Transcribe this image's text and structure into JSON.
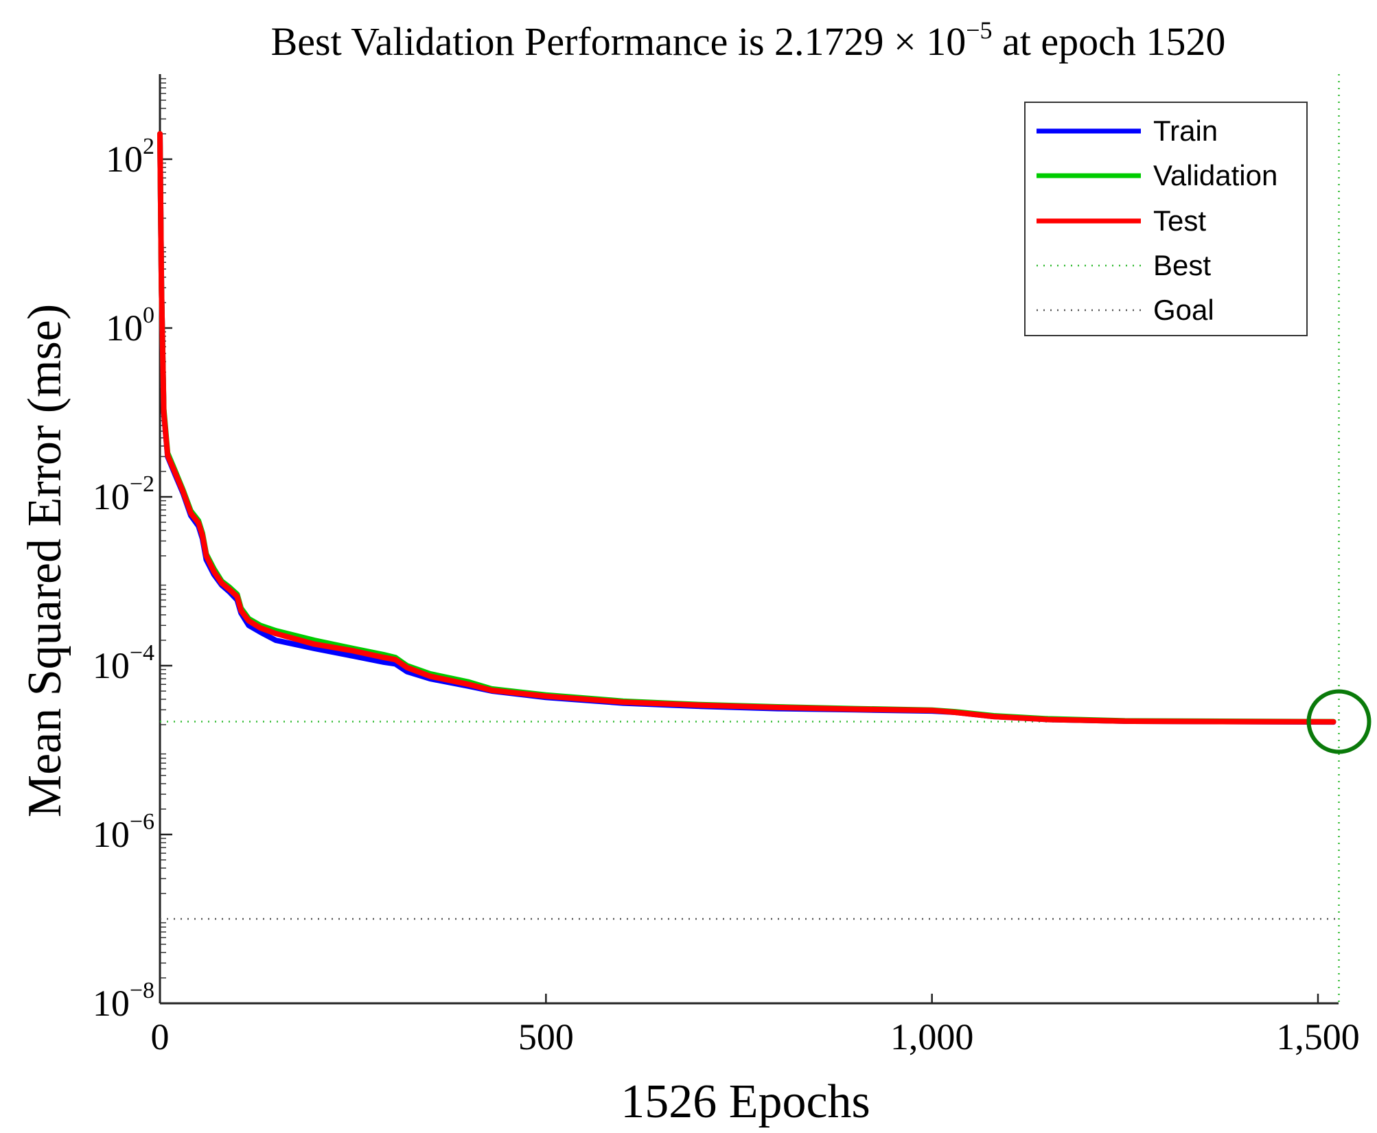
{
  "chart_data": {
    "type": "line",
    "title": {
      "prefix": "Best Validation Performance is 2.1729 × 10",
      "exponent": "−5",
      "suffix": " at epoch 1520"
    },
    "xlabel": "1526 Epochs",
    "ylabel": "Mean Squared Error (mse)",
    "xscale": "linear",
    "yscale": "log",
    "xlim": [
      0,
      1526
    ],
    "ylim_exponents": [
      -8,
      3
    ],
    "x_ticks": [
      {
        "value": 0,
        "label": "0"
      },
      {
        "value": 500,
        "label": "500"
      },
      {
        "value": 1000,
        "label": "1,000"
      },
      {
        "value": 1500,
        "label": "1,500"
      }
    ],
    "y_ticks": [
      {
        "exponent": 2,
        "base": "10",
        "sup": "2"
      },
      {
        "exponent": 0,
        "base": "10",
        "sup": "0"
      },
      {
        "exponent": -2,
        "base": "10",
        "sup": "−2"
      },
      {
        "exponent": -4,
        "base": "10",
        "sup": "−4"
      },
      {
        "exponent": -6,
        "base": "10",
        "sup": "−6"
      },
      {
        "exponent": -8,
        "base": "10",
        "sup": "−8"
      }
    ],
    "series": [
      {
        "name": "Train",
        "color": "#0000ff",
        "style": "solid",
        "points": [
          [
            0,
            200
          ],
          [
            2,
            3
          ],
          [
            5,
            0.1
          ],
          [
            10,
            0.03
          ],
          [
            20,
            0.018
          ],
          [
            30,
            0.011
          ],
          [
            40,
            0.006
          ],
          [
            50,
            0.0045
          ],
          [
            55,
            0.0032
          ],
          [
            60,
            0.0018
          ],
          [
            70,
            0.0012
          ],
          [
            80,
            0.0009
          ],
          [
            90,
            0.00075
          ],
          [
            100,
            0.0006
          ],
          [
            105,
            0.00042
          ],
          [
            115,
            0.0003
          ],
          [
            130,
            0.00025
          ],
          [
            150,
            0.0002
          ],
          [
            200,
            0.00016
          ],
          [
            250,
            0.00013
          ],
          [
            290,
            0.00011
          ],
          [
            305,
            0.000105
          ],
          [
            320,
            8.5e-05
          ],
          [
            350,
            7e-05
          ],
          [
            400,
            5.7e-05
          ],
          [
            430,
            5e-05
          ],
          [
            500,
            4.2e-05
          ],
          [
            600,
            3.6e-05
          ],
          [
            700,
            3.3e-05
          ],
          [
            800,
            3.1e-05
          ],
          [
            900,
            3e-05
          ],
          [
            1000,
            2.9e-05
          ],
          [
            1030,
            2.8e-05
          ],
          [
            1080,
            2.5e-05
          ],
          [
            1150,
            2.3e-05
          ],
          [
            1250,
            2.2e-05
          ],
          [
            1350,
            2.18e-05
          ],
          [
            1520,
            2.15e-05
          ]
        ]
      },
      {
        "name": "Validation",
        "color": "#00cc00",
        "style": "solid",
        "points": [
          [
            0,
            200
          ],
          [
            2,
            3
          ],
          [
            5,
            0.11
          ],
          [
            10,
            0.033
          ],
          [
            20,
            0.02
          ],
          [
            30,
            0.012
          ],
          [
            40,
            0.0068
          ],
          [
            50,
            0.0052
          ],
          [
            55,
            0.0037
          ],
          [
            60,
            0.0021
          ],
          [
            70,
            0.0014
          ],
          [
            80,
            0.001
          ],
          [
            90,
            0.00085
          ],
          [
            100,
            0.0007
          ],
          [
            105,
            0.00048
          ],
          [
            115,
            0.00036
          ],
          [
            130,
            0.0003
          ],
          [
            150,
            0.00026
          ],
          [
            200,
            0.0002
          ],
          [
            250,
            0.00016
          ],
          [
            290,
            0.000135
          ],
          [
            305,
            0.000125
          ],
          [
            320,
            0.0001
          ],
          [
            350,
            8e-05
          ],
          [
            400,
            6.4e-05
          ],
          [
            430,
            5.3e-05
          ],
          [
            500,
            4.5e-05
          ],
          [
            600,
            3.8e-05
          ],
          [
            700,
            3.45e-05
          ],
          [
            800,
            3.25e-05
          ],
          [
            900,
            3.1e-05
          ],
          [
            1000,
            2.98e-05
          ],
          [
            1030,
            2.85e-05
          ],
          [
            1080,
            2.55e-05
          ],
          [
            1150,
            2.35e-05
          ],
          [
            1250,
            2.22e-05
          ],
          [
            1350,
            2.2e-05
          ],
          [
            1520,
            2.17e-05
          ]
        ]
      },
      {
        "name": "Test",
        "color": "#ff0000",
        "style": "solid",
        "points": [
          [
            0,
            200
          ],
          [
            2,
            3
          ],
          [
            5,
            0.1
          ],
          [
            10,
            0.031
          ],
          [
            20,
            0.019
          ],
          [
            30,
            0.0115
          ],
          [
            40,
            0.0064
          ],
          [
            50,
            0.0049
          ],
          [
            55,
            0.0035
          ],
          [
            60,
            0.002
          ],
          [
            70,
            0.0013
          ],
          [
            80,
            0.00095
          ],
          [
            90,
            0.0008
          ],
          [
            100,
            0.00066
          ],
          [
            105,
            0.00045
          ],
          [
            115,
            0.00034
          ],
          [
            130,
            0.00028
          ],
          [
            150,
            0.00024
          ],
          [
            200,
            0.00018
          ],
          [
            250,
            0.00015
          ],
          [
            290,
            0.000125
          ],
          [
            305,
            0.000118
          ],
          [
            320,
            9.5e-05
          ],
          [
            350,
            7.5e-05
          ],
          [
            400,
            6e-05
          ],
          [
            430,
            5.1e-05
          ],
          [
            500,
            4.35e-05
          ],
          [
            600,
            3.7e-05
          ],
          [
            700,
            3.4e-05
          ],
          [
            800,
            3.2e-05
          ],
          [
            900,
            3.05e-05
          ],
          [
            1000,
            2.95e-05
          ],
          [
            1030,
            2.8e-05
          ],
          [
            1080,
            2.5e-05
          ],
          [
            1150,
            2.3e-05
          ],
          [
            1250,
            2.2e-05
          ],
          [
            1350,
            2.18e-05
          ],
          [
            1520,
            2.16e-05
          ]
        ]
      },
      {
        "name": "Best",
        "color": "#33bb33",
        "style": "dotted",
        "y": 2.1729e-05,
        "x": 1520
      },
      {
        "name": "Goal",
        "color": "#555555",
        "style": "dotted",
        "y": 1e-07
      }
    ],
    "best_marker": {
      "x": 1520,
      "y": 2.1729e-05,
      "color": "#0a7a0a"
    },
    "legend": {
      "position": "top-right",
      "entries": [
        "Train",
        "Validation",
        "Test",
        "Best",
        "Goal"
      ]
    },
    "grid": false
  }
}
